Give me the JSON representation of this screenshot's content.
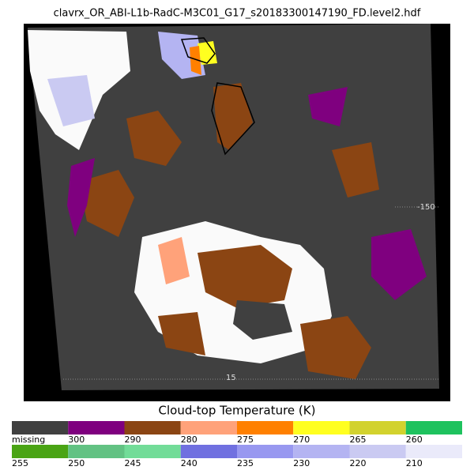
{
  "title": "clavrx_OR_ABI-L1b-RadC-M3C01_G17_s20183300147190_FD.level2.hdf",
  "map": {
    "lon_label": "-150",
    "lat_label": "15"
  },
  "colorbar": {
    "label": "Cloud-top Temperature (K)",
    "rows": [
      [
        {
          "label": "missing",
          "color": "#404040"
        },
        {
          "label": "300",
          "color": "#7f007f"
        },
        {
          "label": "290",
          "color": "#8b4513"
        },
        {
          "label": "280",
          "color": "#ffa27a"
        },
        {
          "label": "275",
          "color": "#ff8000"
        },
        {
          "label": "270",
          "color": "#ffff20"
        },
        {
          "label": "265",
          "color": "#d2d22e"
        },
        {
          "label": "260",
          "color": "#1ec25e"
        }
      ],
      [
        {
          "label": "255",
          "color": "#4aa414"
        },
        {
          "label": "250",
          "color": "#62c283"
        },
        {
          "label": "245",
          "color": "#72dc98"
        },
        {
          "label": "240",
          "color": "#7070e0"
        },
        {
          "label": "235",
          "color": "#9898f0"
        },
        {
          "label": "230",
          "color": "#b4b4f2"
        },
        {
          "label": "220",
          "color": "#cacaf2"
        },
        {
          "label": "210",
          "color": "#eaeafa"
        }
      ]
    ]
  }
}
